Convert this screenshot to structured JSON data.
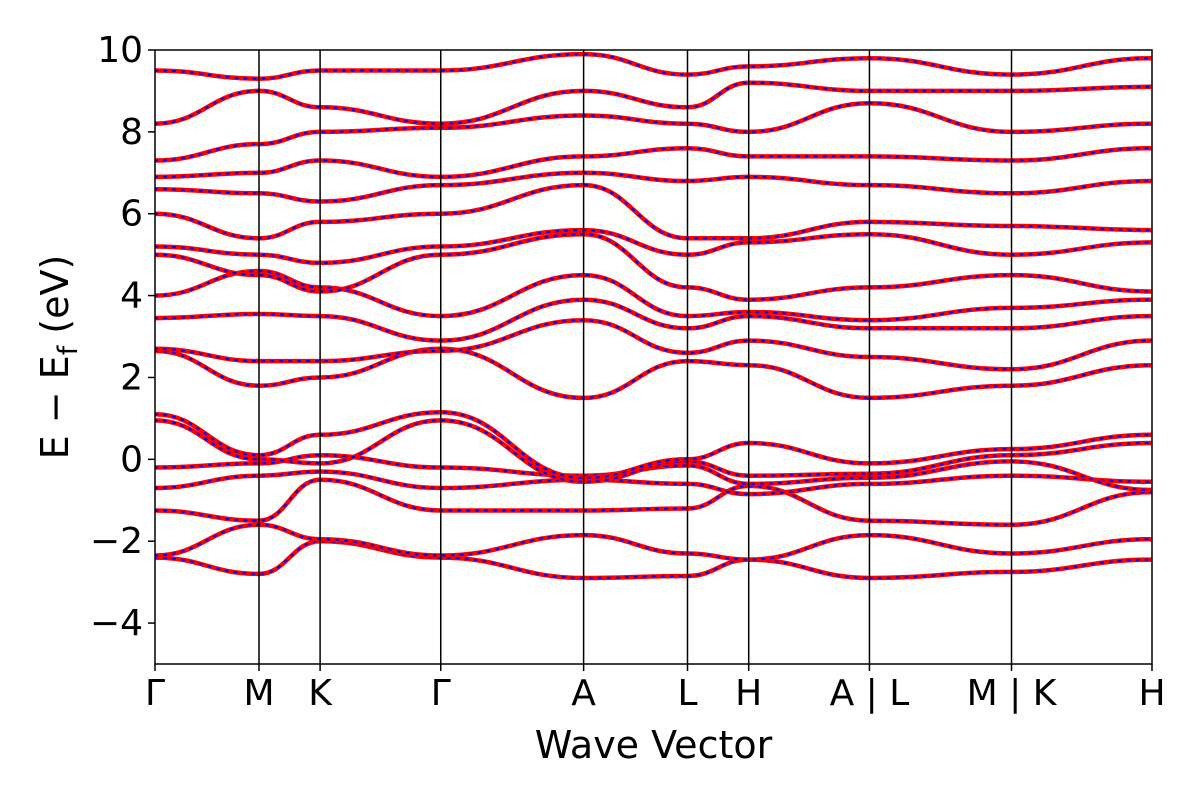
{
  "chart_data": {
    "type": "line",
    "xlabel": "Wave Vector",
    "ylabel": "E − E",
    "ylabel_subscript": "f",
    "ylabel_unit": " (eV)",
    "ylim": [
      -5,
      10
    ],
    "yticks": [
      -4,
      -2,
      0,
      2,
      4,
      6,
      8,
      10
    ],
    "ytick_labels": [
      "−4",
      "−2",
      "0",
      "2",
      "4",
      "6",
      "8",
      "10"
    ],
    "xlim": [
      0,
      1
    ],
    "high_symmetry_points": [
      {
        "x": 0.0,
        "label": "Γ"
      },
      {
        "x": 0.1043,
        "label": "M"
      },
      {
        "x": 0.1656,
        "label": "K"
      },
      {
        "x": 0.2866,
        "label": "Γ"
      },
      {
        "x": 0.4299,
        "label": "A"
      },
      {
        "x": 0.5341,
        "label": "L"
      },
      {
        "x": 0.5955,
        "label": "H"
      },
      {
        "x": 0.7166,
        "label": "A | L"
      },
      {
        "x": 0.8591,
        "label": "M | K"
      },
      {
        "x": 1.0,
        "label": "H"
      }
    ],
    "discontinuities": [
      0.7166,
      0.8591
    ],
    "grid": false,
    "legend": "none",
    "series": [
      {
        "color": "#ff0000",
        "style": "solid"
      },
      {
        "color": "#0000ff",
        "style": "dotted"
      }
    ],
    "band_energies_at_points": [
      [
        -2.4,
        -2.8,
        -2.0,
        -2.4,
        -2.9,
        -2.85,
        -2.45,
        -2.9,
        -2.75,
        -2.45
      ],
      [
        -2.35,
        -1.6,
        -1.95,
        -2.35,
        -1.85,
        -2.3,
        -2.45,
        -1.85,
        -2.3,
        -1.95
      ],
      [
        -1.25,
        -1.5,
        -0.5,
        -1.25,
        -1.25,
        -1.2,
        -0.65,
        -1.5,
        -1.6,
        -0.8
      ],
      [
        -0.7,
        -0.4,
        -0.3,
        -0.7,
        -0.5,
        -0.6,
        -0.85,
        -0.6,
        -0.4,
        -0.55
      ],
      [
        -0.2,
        -0.1,
        0.1,
        -0.2,
        -0.4,
        -0.15,
        -0.6,
        -0.45,
        -0.05,
        -0.75
      ],
      [
        0.95,
        0.0,
        -0.1,
        0.95,
        -0.55,
        -0.05,
        -0.4,
        -0.35,
        0.1,
        0.4
      ],
      [
        1.1,
        0.1,
        0.6,
        1.15,
        -0.45,
        0.0,
        0.4,
        -0.1,
        0.25,
        0.6
      ],
      [
        2.65,
        1.8,
        2.0,
        2.7,
        1.5,
        2.4,
        2.3,
        1.5,
        1.8,
        2.3
      ],
      [
        2.7,
        2.4,
        2.4,
        2.65,
        3.4,
        2.6,
        2.9,
        2.5,
        2.2,
        2.9
      ],
      [
        3.45,
        3.55,
        3.5,
        2.9,
        3.9,
        3.2,
        3.5,
        3.2,
        3.2,
        3.5
      ],
      [
        4.0,
        4.6,
        4.2,
        3.5,
        4.5,
        3.5,
        3.6,
        3.4,
        3.7,
        3.9
      ],
      [
        5.0,
        4.5,
        4.1,
        5.0,
        5.5,
        4.2,
        3.9,
        4.2,
        4.5,
        4.1
      ],
      [
        5.2,
        5.0,
        4.8,
        5.2,
        5.6,
        5.0,
        5.3,
        5.5,
        5.0,
        5.3
      ],
      [
        6.0,
        5.4,
        5.8,
        6.0,
        6.7,
        5.4,
        5.4,
        5.8,
        5.7,
        5.6
      ],
      [
        6.6,
        6.5,
        6.3,
        6.7,
        7.0,
        6.8,
        6.9,
        6.7,
        6.5,
        6.8
      ],
      [
        6.9,
        7.0,
        7.3,
        6.9,
        7.4,
        7.6,
        7.4,
        7.4,
        7.3,
        7.6
      ],
      [
        7.3,
        7.7,
        8.0,
        8.1,
        8.4,
        8.2,
        8.0,
        8.7,
        8.0,
        8.2
      ],
      [
        8.2,
        9.0,
        8.6,
        8.2,
        9.0,
        8.6,
        9.2,
        9.0,
        9.0,
        9.1
      ],
      [
        9.5,
        9.3,
        9.5,
        9.5,
        9.9,
        9.4,
        9.6,
        9.8,
        9.4,
        9.8
      ]
    ]
  }
}
